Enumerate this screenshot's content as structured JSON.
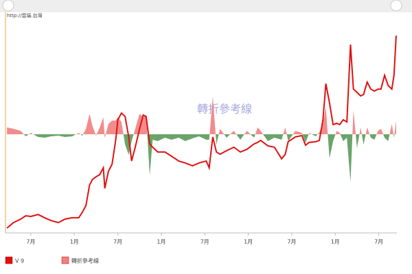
{
  "chart_data": {
    "type": "line",
    "source": "http://雲端.台灣",
    "watermark": "轉折參考線",
    "xlim": [
      0,
      54
    ],
    "xticks": [
      {
        "value": 3.5,
        "label": "7月"
      },
      {
        "value": 9.5,
        "label": "1月"
      },
      {
        "value": 15.5,
        "label": "7月"
      },
      {
        "value": 21.5,
        "label": "1月"
      },
      {
        "value": 27.5,
        "label": "7月"
      },
      {
        "value": 33.5,
        "label": "1月"
      },
      {
        "value": 39.5,
        "label": "7月"
      },
      {
        "value": 45.5,
        "label": "1月"
      },
      {
        "value": 51.5,
        "label": "7月"
      }
    ],
    "ylim": [
      0,
      100
    ],
    "y2lim": [
      -144,
      176
    ],
    "x": [
      0.2,
      1.1,
      2.1,
      2.8,
      3.5,
      4.5,
      5.4,
      6.3,
      7.3,
      8.2,
      9.2,
      10.1,
      10.6,
      11.1,
      11.6,
      12.0,
      12.5,
      13.0,
      13.5,
      13.7,
      14.2,
      14.7,
      15.2,
      15.5,
      16.0,
      16.5,
      17.0,
      17.4,
      17.9,
      18.5,
      19.0,
      19.4,
      19.9,
      20.3,
      21.0,
      22.0,
      22.9,
      23.9,
      24.8,
      25.8,
      26.7,
      27.7,
      28.1,
      28.6,
      29.1,
      29.6,
      30.5,
      31.5,
      32.4,
      33.3,
      34.3,
      34.8,
      35.2,
      36.2,
      37.1,
      38.1,
      38.6,
      39.0,
      40.0,
      40.9,
      41.4,
      41.9,
      42.8,
      43.3,
      43.8,
      44.2,
      44.7,
      45.2,
      45.7,
      46.1,
      46.6,
      47.1,
      47.6,
      48.0,
      48.5,
      49.0,
      49.4,
      49.9,
      50.4,
      50.9,
      51.4,
      51.8,
      52.3,
      52.8,
      53.3,
      53.6,
      53.9
    ],
    "series": [
      {
        "name": "V 9",
        "color": "#e01010",
        "values": [
          2.2,
          4.7,
          6.3,
          7.8,
          7.5,
          8.4,
          6.9,
          5.6,
          4.7,
          6.3,
          6.9,
          6.9,
          9.4,
          12.5,
          21.9,
          24.4,
          25.6,
          26.6,
          29.7,
          20.3,
          28.1,
          31.3,
          42.2,
          51.6,
          54.7,
          53.1,
          43.8,
          32.8,
          39.1,
          47.5,
          53.8,
          53.1,
          40.6,
          39.1,
          36.9,
          36.9,
          35.0,
          32.8,
          31.9,
          30.6,
          31.9,
          32.8,
          29.7,
          43.8,
          36.9,
          35.9,
          37.5,
          39.1,
          36.9,
          38.1,
          40.6,
          41.3,
          42.2,
          39.7,
          39.1,
          33.8,
          35.9,
          41.6,
          43.8,
          44.4,
          40.0,
          41.3,
          41.6,
          42.2,
          51.6,
          68.1,
          59.4,
          49.4,
          50.0,
          49.4,
          51.6,
          50.6,
          85.9,
          65.6,
          64.1,
          62.5,
          63.1,
          68.8,
          65.6,
          64.7,
          65.6,
          65.6,
          71.9,
          67.2,
          65.6,
          71.9,
          90.0
        ]
      },
      {
        "name": "轉折參考線",
        "color": "#f08080",
        "negative_color": "#5a9a5a",
        "axis": "y2",
        "values": [
          10,
          8,
          5,
          -3,
          2,
          -4,
          -5,
          -3,
          -2,
          -4,
          -3,
          2,
          -2,
          8,
          30,
          12,
          -2,
          10,
          25,
          -5,
          15,
          20,
          20,
          25,
          18,
          -15,
          -30,
          -10,
          8,
          30,
          25,
          28,
          -60,
          -8,
          -10,
          -5,
          -8,
          -5,
          -10,
          -6,
          -3,
          -8,
          -8,
          55,
          -15,
          8,
          -5,
          5,
          -8,
          5,
          -5,
          10,
          5,
          -10,
          -5,
          -8,
          10,
          -10,
          5,
          2,
          -12,
          2,
          -3,
          3,
          15,
          40,
          -35,
          -10,
          5,
          2,
          -10,
          -5,
          -70,
          35,
          -20,
          10,
          -15,
          10,
          -5,
          -8,
          5,
          8,
          -5,
          -10,
          15,
          -5,
          20
        ]
      }
    ]
  }
}
